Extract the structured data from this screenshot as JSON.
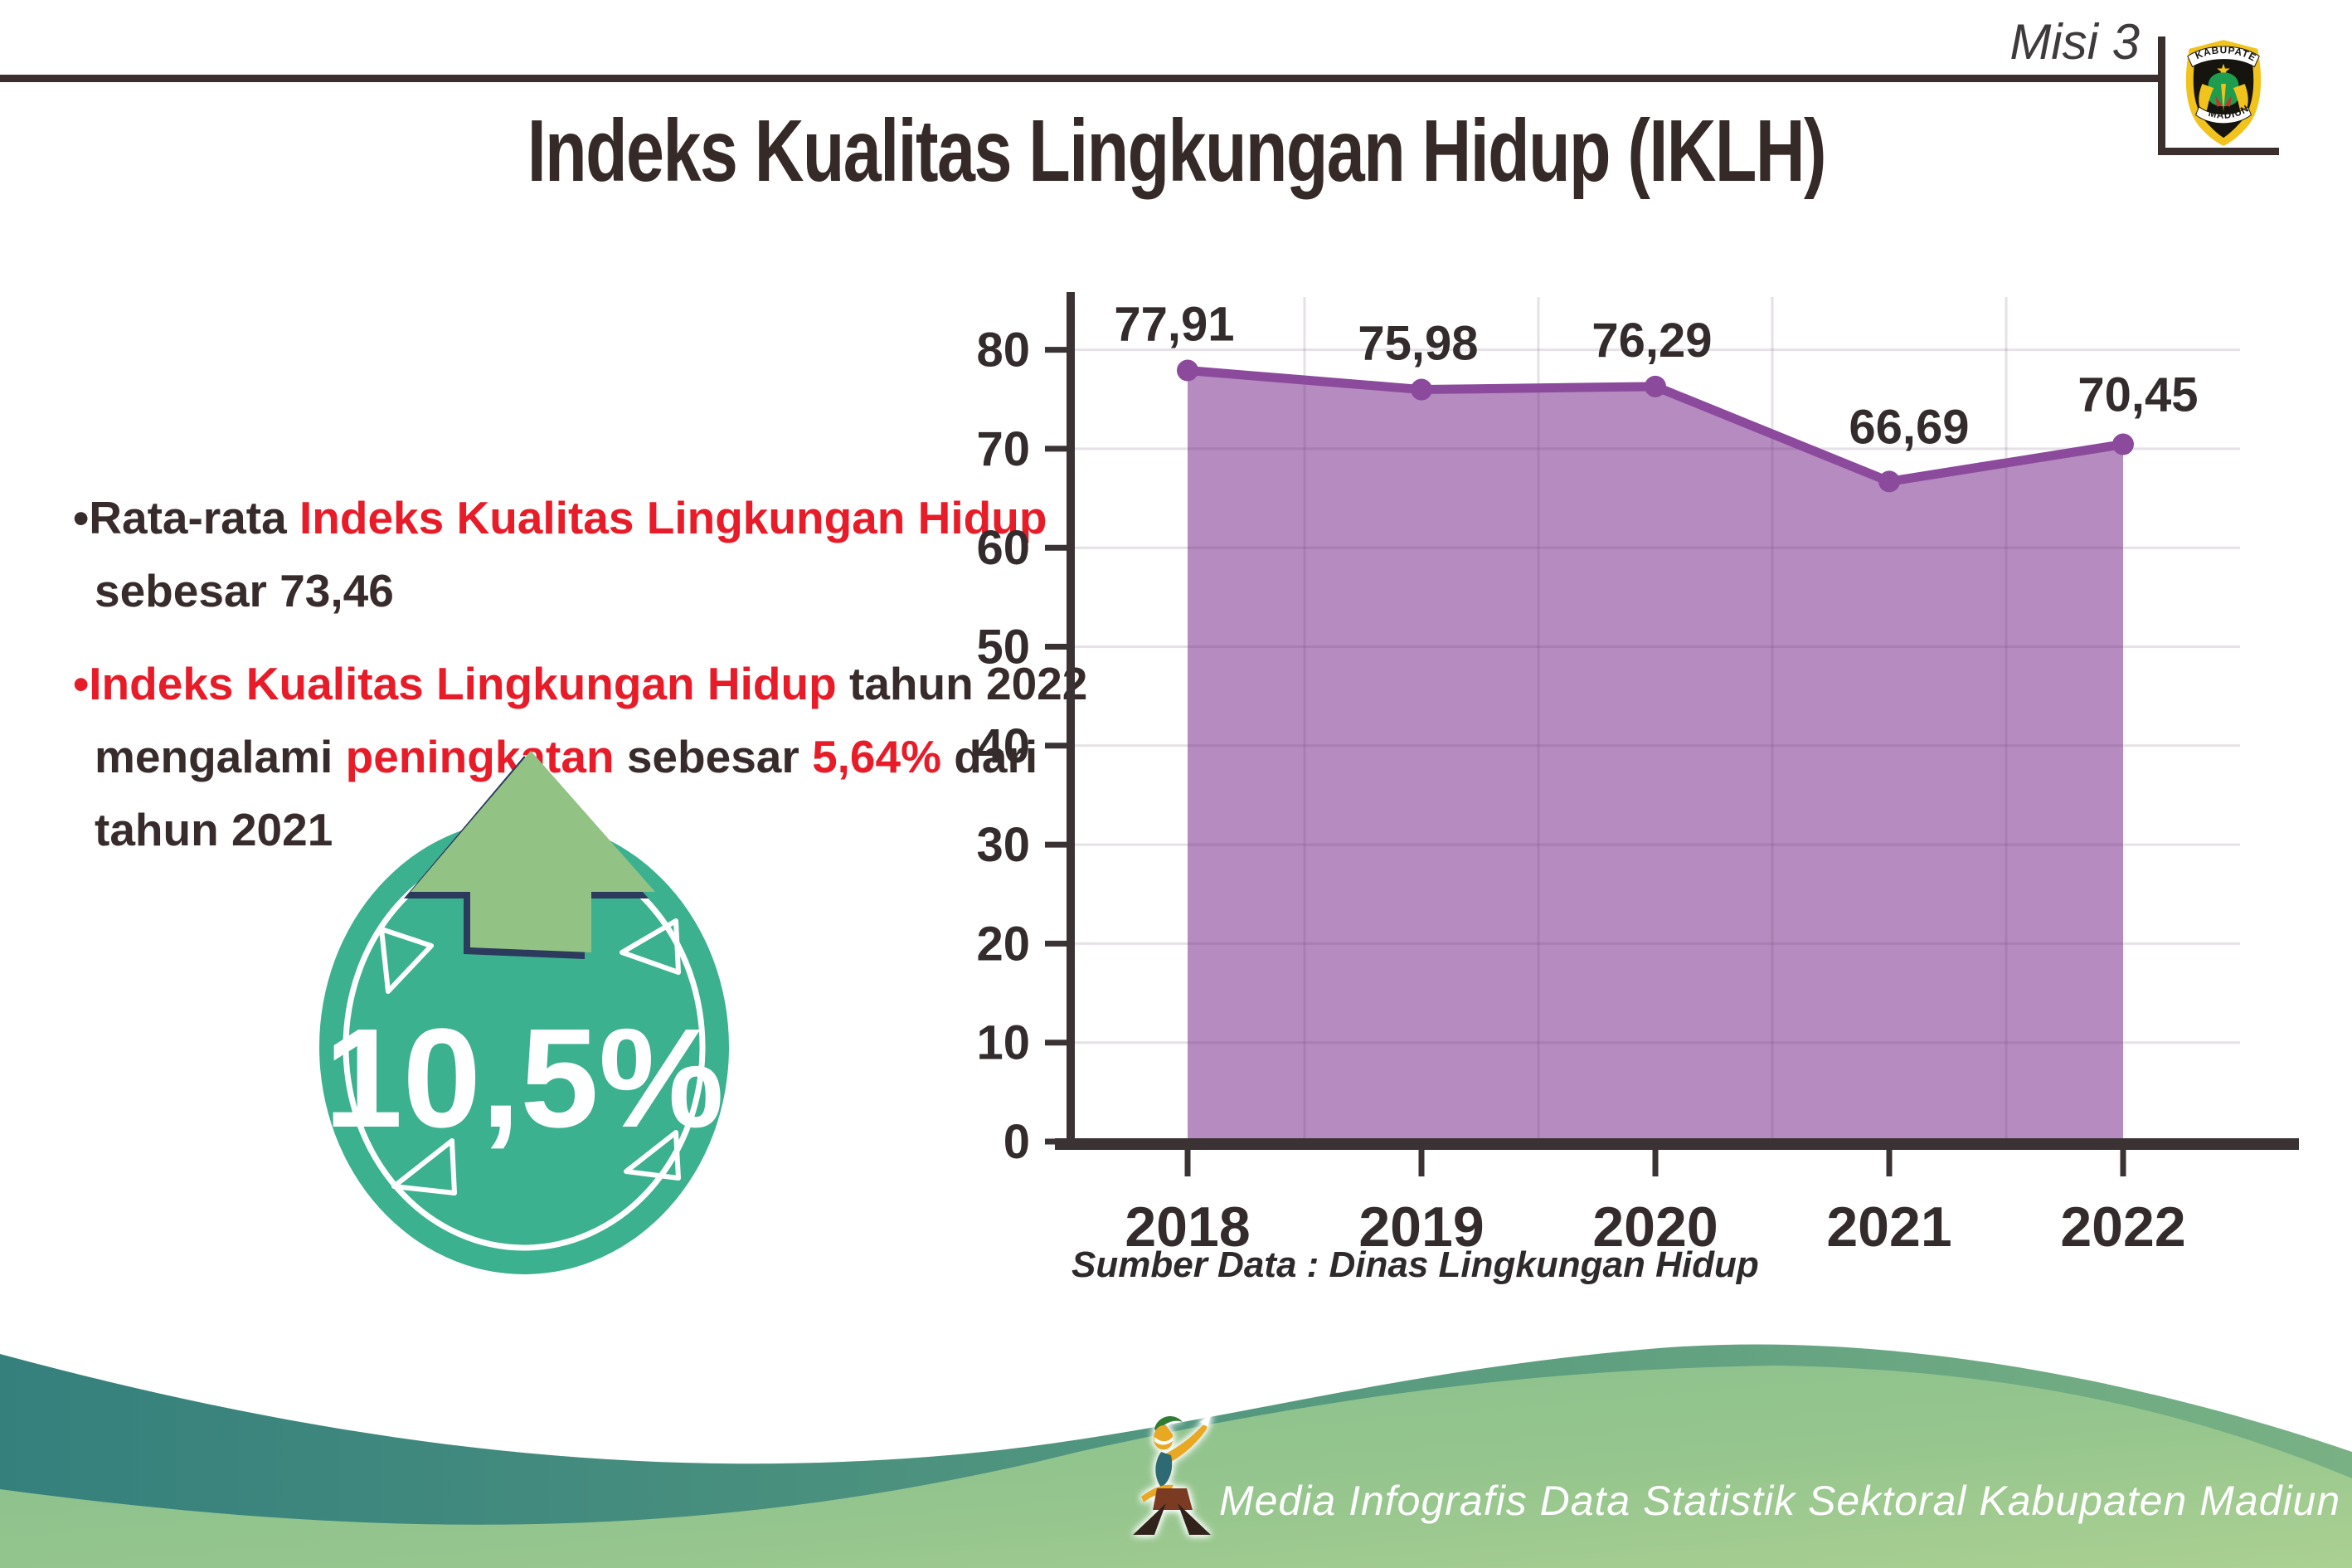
{
  "page_title": "Indeks Kualitas Lingkungan Hidup (IKLH)",
  "header": {
    "mission_label": "Misi 3",
    "logo_top": "KABUPATEN",
    "logo_bottom": "MADIUN"
  },
  "bullets": [
    {
      "lines": [
        [
          {
            "t": "•Rata-rata ",
            "c": "dark"
          },
          {
            "t": "Indeks Kualitas Lingkungan Hidup",
            "c": "red"
          }
        ],
        [
          {
            "t": "sebesar 73,46",
            "c": "dark"
          }
        ]
      ]
    },
    {
      "lines": [
        [
          {
            "t": "•",
            "c": "red"
          },
          {
            "t": "Indeks Kualitas Lingkungan Hidup",
            "c": "red"
          },
          {
            "t": " tahun 2022",
            "c": "dark"
          }
        ],
        [
          {
            "t": "mengalami ",
            "c": "dark"
          },
          {
            "t": "peningkatan",
            "c": "red"
          },
          {
            "t": " sebesar ",
            "c": "dark"
          },
          {
            "t": "5,64%",
            "c": "red"
          },
          {
            "t": " dari",
            "c": "dark"
          }
        ],
        [
          {
            "t": "tahun 2021",
            "c": "dark"
          }
        ]
      ]
    }
  ],
  "badge": {
    "value": "10,5%",
    "direction": "up"
  },
  "chart_data": {
    "type": "area",
    "title": "",
    "categories": [
      "2018",
      "2019",
      "2020",
      "2021",
      "2022"
    ],
    "series": [
      {
        "name": "IKLH",
        "values": [
          77.91,
          75.98,
          76.29,
          66.69,
          70.45
        ]
      }
    ],
    "point_labels": [
      "77,91",
      "75,98",
      "76,29",
      "66,69",
      "70,45"
    ],
    "ylim": [
      0,
      85
    ],
    "yticks": [
      0,
      10,
      20,
      30,
      40,
      50,
      60,
      70,
      80
    ],
    "grid": true,
    "legend": "none",
    "source_note": "Sumber Data : Dinas Lingkungan Hidup"
  },
  "footer": {
    "caption": "Media Infografis Data Statistik Sektoral Kabupaten Madiun |"
  },
  "colors": {
    "dark_text": "#372c2b",
    "red_text": "#e81c28",
    "line_purple": "#8c4a9c",
    "axis_dark": "#3a3233",
    "grid": "rgba(100,70,100,0.16)",
    "badge_teal": "#3cb18f",
    "arrow_green": "#93c285",
    "arrow_outline_navy": "#2c3a5e",
    "footer_teal": "#36807e",
    "footer_green_rim": "#6fae80",
    "dome_green_light": "#8cc18e",
    "dome_green_lighter": "#abd092",
    "white": "#ffffff"
  }
}
